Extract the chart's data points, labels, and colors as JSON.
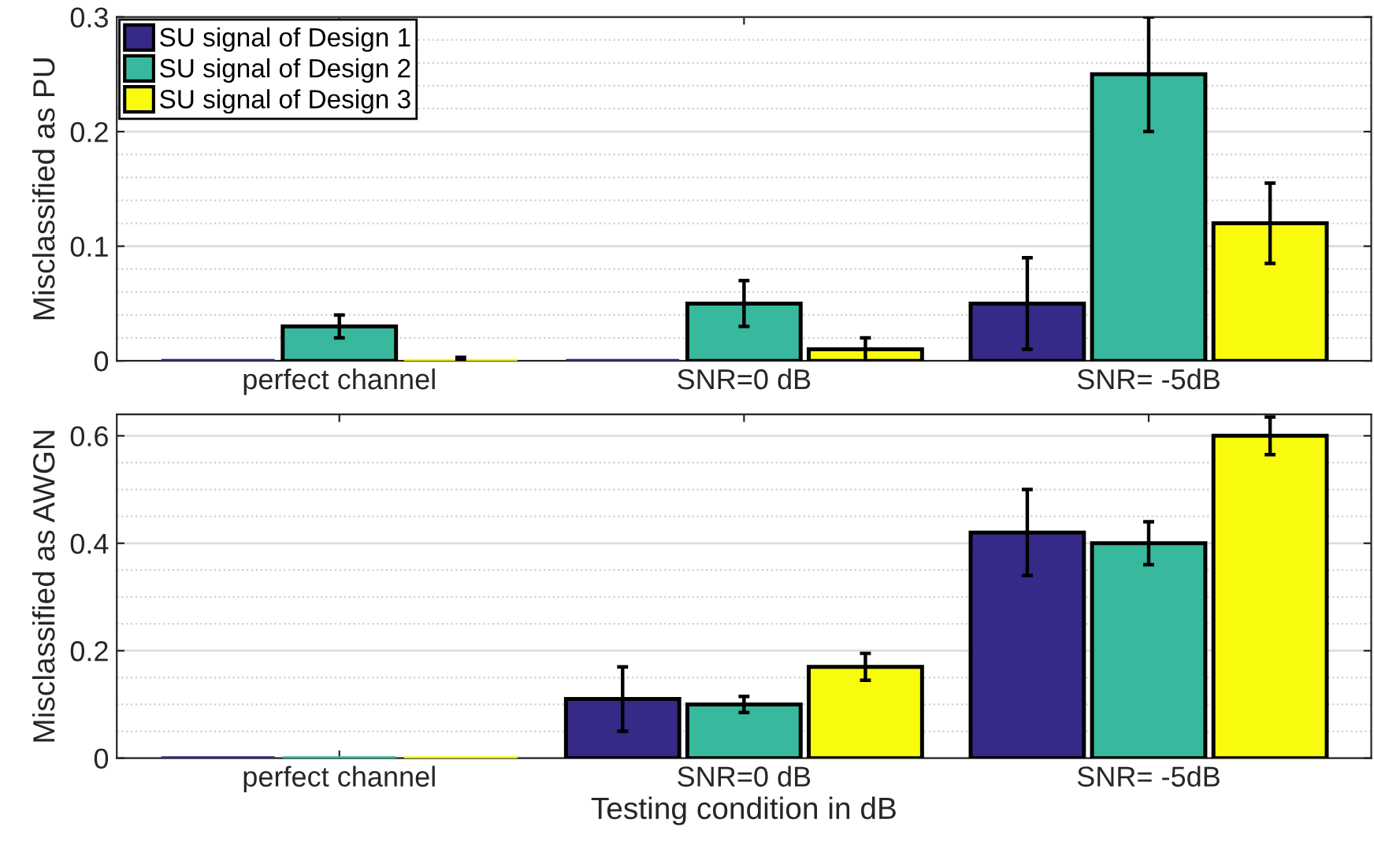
{
  "chart_data": [
    {
      "type": "bar",
      "ylabel": "Misclassified as PU",
      "categories": [
        "perfect channel",
        "SNR=0 dB",
        "SNR= -5dB"
      ],
      "ylim": [
        0,
        0.3
      ],
      "yticks": [
        0,
        0.1,
        0.2,
        0.3
      ],
      "grid": true,
      "legend": "top left",
      "series": [
        {
          "name": "SU signal of Design 1",
          "color": "#352a87",
          "values": [
            0,
            0,
            0.05
          ],
          "errors": [
            null,
            null,
            0.04
          ]
        },
        {
          "name": "SU signal of Design 2",
          "color": "#38b99e",
          "values": [
            0.03,
            0.05,
            0.25
          ],
          "errors": [
            0.01,
            0.02,
            0.05
          ]
        },
        {
          "name": "SU signal of Design 3",
          "color": "#f9fb0e",
          "values": [
            0,
            0.01,
            0.12
          ],
          "errors": [
            [
              0,
              0.003
            ],
            0.01,
            0.035
          ]
        }
      ]
    },
    {
      "type": "bar",
      "ylabel": "Misclassified as AWGN",
      "xlabel": "Testing condition in dB",
      "categories": [
        "perfect channel",
        "SNR=0 dB",
        "SNR= -5dB"
      ],
      "ylim": [
        0,
        0.64
      ],
      "yticks": [
        0,
        0.2,
        0.4,
        0.6
      ],
      "grid": true,
      "series": [
        {
          "color": "#352a87",
          "values": [
            0,
            0.11,
            0.42
          ],
          "errors": [
            null,
            0.06,
            0.08
          ]
        },
        {
          "color": "#38b99e",
          "values": [
            0,
            0.1,
            0.4
          ],
          "errors": [
            null,
            0.015,
            0.04
          ]
        },
        {
          "color": "#f9fb0e",
          "values": [
            0,
            0.17,
            0.6
          ],
          "errors": [
            null,
            0.025,
            0.035
          ]
        }
      ]
    }
  ]
}
